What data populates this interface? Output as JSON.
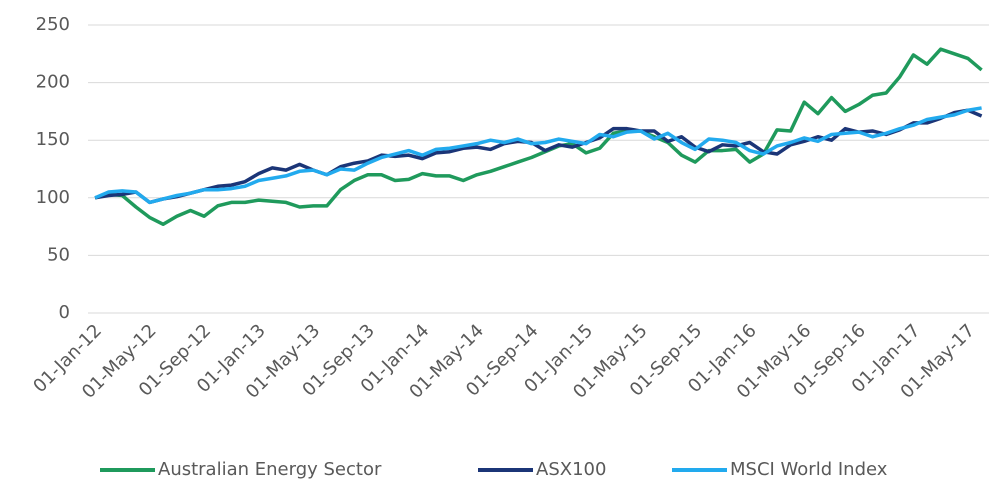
{
  "chart_data": {
    "type": "line",
    "categories": [
      "01-Jan-12",
      null,
      null,
      null,
      "01-May-12",
      null,
      null,
      null,
      "01-Sep-12",
      null,
      null,
      null,
      "01-Jan-13",
      null,
      null,
      null,
      "01-May-13",
      null,
      null,
      null,
      "01-Sep-13",
      null,
      null,
      null,
      "01-Jan-14",
      null,
      null,
      null,
      "01-May-14",
      null,
      null,
      null,
      "01-Sep-14",
      null,
      null,
      null,
      "01-Jan-15",
      null,
      null,
      null,
      "01-May-15",
      null,
      null,
      null,
      "01-Sep-15",
      null,
      null,
      null,
      "01-Jan-16",
      null,
      null,
      null,
      "01-May-16",
      null,
      null,
      null,
      "01-Sep-16",
      null,
      null,
      null,
      "01-Jan-17",
      null,
      null,
      null,
      "01-May-17",
      null
    ],
    "series": [
      {
        "name": "Australian Energy Sector",
        "color": "#1f9a5c",
        "values": [
          100,
          103,
          102,
          92,
          83,
          77,
          84,
          89,
          84,
          93,
          96,
          96,
          98,
          97,
          96,
          92,
          93,
          93,
          107,
          115,
          120,
          120,
          115,
          116,
          121,
          119,
          119,
          115,
          120,
          123,
          127,
          131,
          135,
          140,
          145,
          147,
          139,
          143,
          156,
          158,
          158,
          153,
          148,
          137,
          131,
          141,
          141,
          142,
          131,
          138,
          159,
          158,
          183,
          173,
          187,
          175,
          181,
          189,
          191,
          205,
          224,
          216,
          229,
          225,
          221,
          211
        ]
      },
      {
        "name": "ASX100",
        "color": "#1b3577",
        "values": [
          100,
          102,
          103,
          105,
          96,
          99,
          101,
          104,
          107,
          110,
          111,
          114,
          121,
          126,
          124,
          129,
          124,
          120,
          127,
          130,
          132,
          137,
          136,
          137,
          134,
          139,
          140,
          143,
          144,
          142,
          147,
          149,
          148,
          141,
          146,
          144,
          148,
          152,
          160,
          160,
          158,
          158,
          149,
          153,
          144,
          140,
          146,
          145,
          148,
          140,
          138,
          146,
          149,
          153,
          150,
          160,
          157,
          158,
          155,
          159,
          165,
          165,
          169,
          174,
          176,
          171
        ]
      },
      {
        "name": "MSCI World Index",
        "color": "#22aaee",
        "values": [
          100,
          105,
          106,
          105,
          96,
          99,
          102,
          104,
          107,
          107,
          108,
          110,
          115,
          117,
          119,
          123,
          124,
          120,
          125,
          124,
          130,
          135,
          138,
          141,
          137,
          142,
          143,
          145,
          147,
          150,
          148,
          151,
          147,
          148,
          151,
          149,
          147,
          155,
          153,
          157,
          158,
          151,
          156,
          148,
          142,
          151,
          150,
          148,
          141,
          138,
          145,
          148,
          152,
          149,
          155,
          156,
          157,
          153,
          156,
          160,
          163,
          168,
          170,
          172,
          176,
          178
        ]
      }
    ],
    "ylim": [
      0,
      250
    ],
    "yticks": [
      0,
      50,
      100,
      150,
      200,
      250
    ],
    "grid": true,
    "legend": "bottom"
  }
}
